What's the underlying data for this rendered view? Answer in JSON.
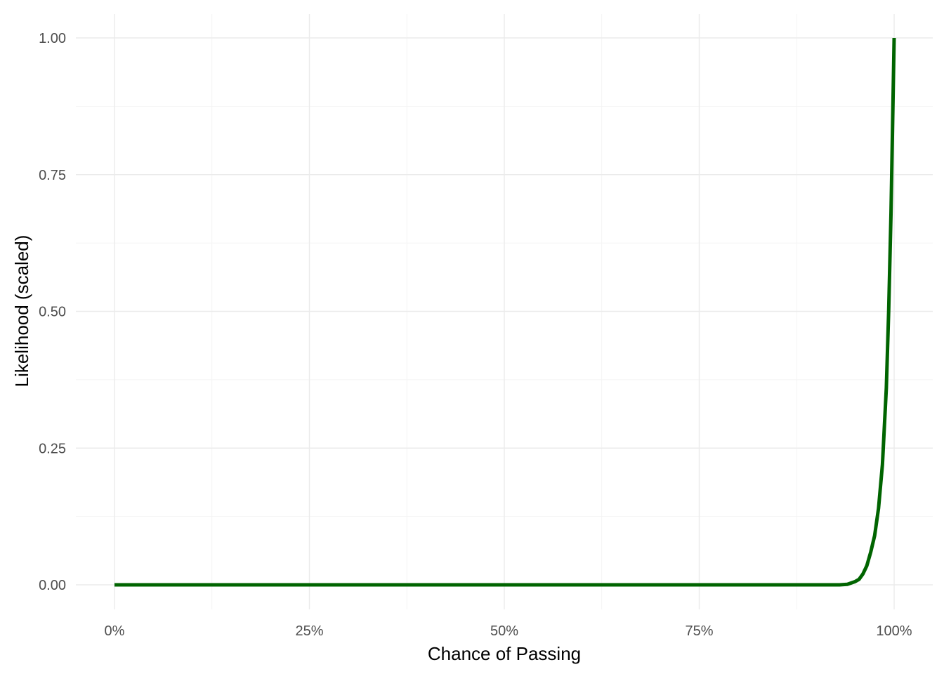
{
  "chart_data": {
    "type": "line",
    "title": "",
    "xlabel": "Chance of Passing",
    "ylabel": "Likelihood (scaled)",
    "xlim": [
      0,
      1
    ],
    "ylim": [
      0,
      1
    ],
    "x_ticks": [
      0,
      0.25,
      0.5,
      0.75,
      1
    ],
    "x_tick_labels": [
      "0%",
      "25%",
      "50%",
      "75%",
      "100%"
    ],
    "y_ticks": [
      0,
      0.25,
      0.5,
      0.75,
      1
    ],
    "y_tick_labels": [
      "0.00",
      "0.25",
      "0.50",
      "0.75",
      "1.00"
    ],
    "grid": true,
    "legend": "none",
    "series": [
      {
        "color": "#006400",
        "x": [
          0,
          0.1,
          0.2,
          0.3,
          0.4,
          0.5,
          0.6,
          0.7,
          0.8,
          0.9,
          0.93,
          0.94,
          0.95,
          0.955,
          0.96,
          0.965,
          0.97,
          0.975,
          0.98,
          0.985,
          0.99,
          0.993,
          0.996,
          1.0
        ],
        "y": [
          0,
          0,
          0,
          0,
          0,
          0,
          0,
          0,
          0,
          0,
          0,
          0.001,
          0.006,
          0.01,
          0.02,
          0.035,
          0.06,
          0.09,
          0.14,
          0.22,
          0.36,
          0.5,
          0.68,
          1.0
        ]
      }
    ]
  }
}
